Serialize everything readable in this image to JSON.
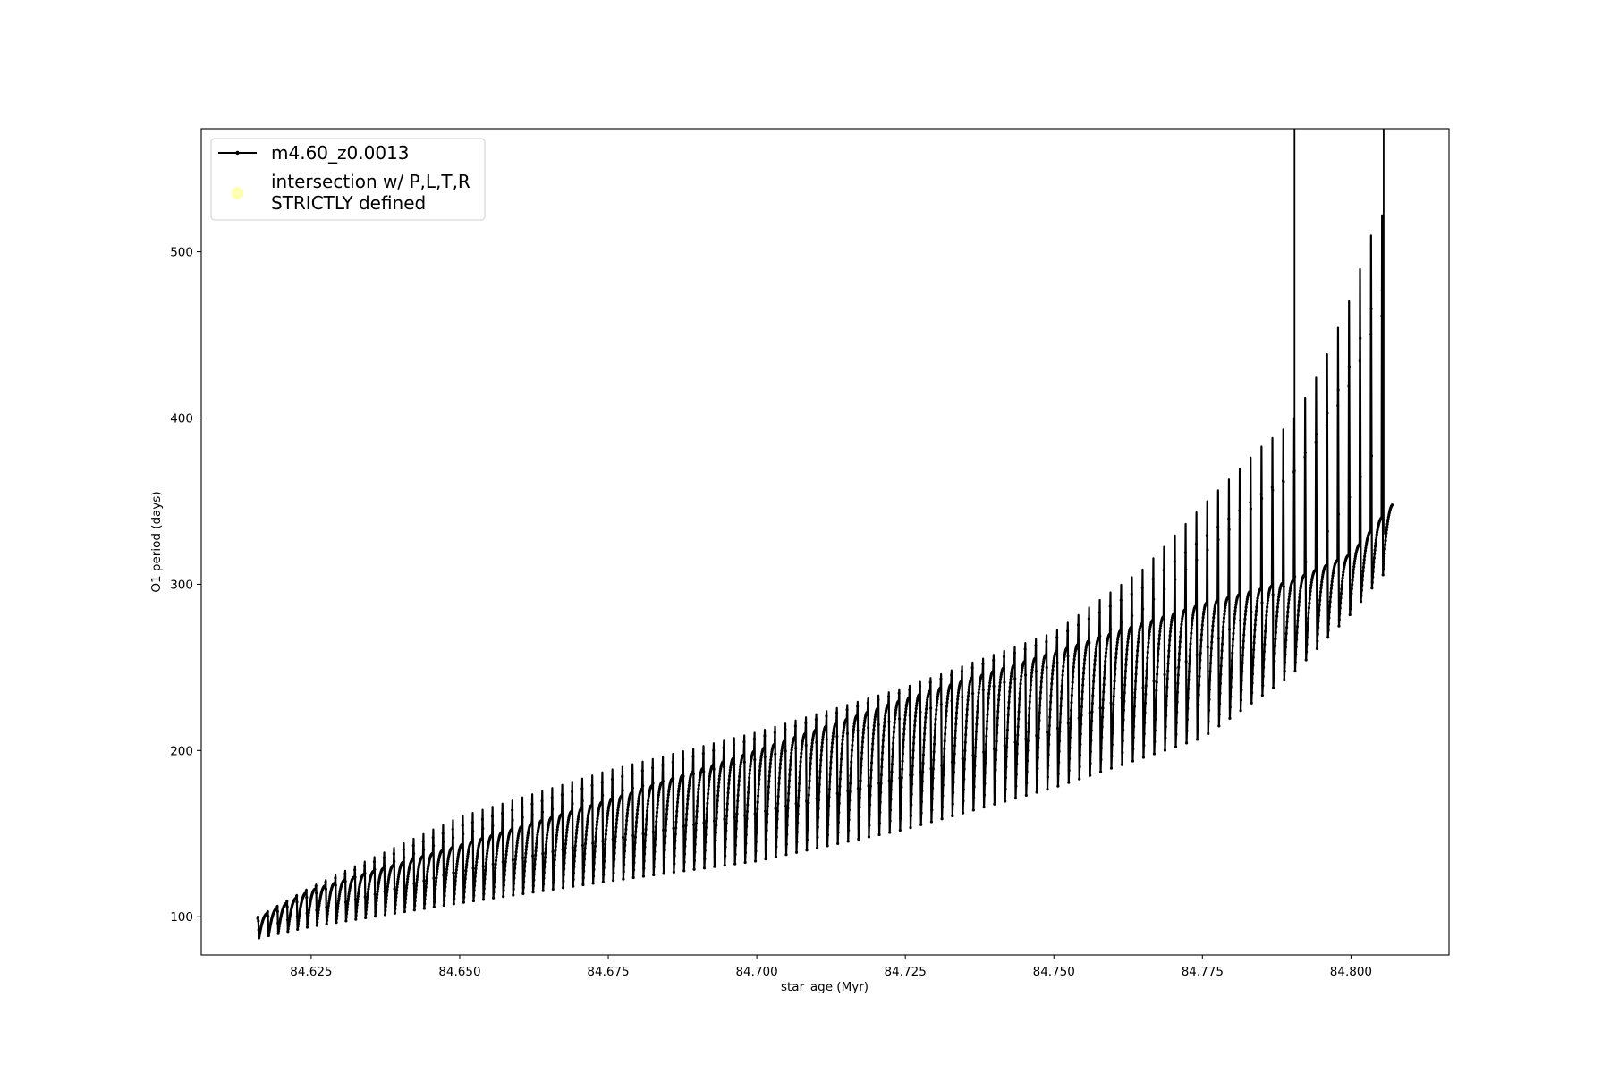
{
  "chart_data": {
    "type": "line",
    "xlabel": "star_age (Myr)",
    "ylabel": "O1 period (days)",
    "xlim": [
      84.6065,
      84.8165
    ],
    "ylim": [
      77,
      574
    ],
    "x_ticks": [
      84.625,
      84.65,
      84.675,
      84.7,
      84.725,
      84.75,
      84.775,
      84.8
    ],
    "x_tick_labels": [
      "84.625",
      "84.650",
      "84.675",
      "84.700",
      "84.725",
      "84.750",
      "84.775",
      "84.800"
    ],
    "y_ticks": [
      100,
      200,
      300,
      400,
      500
    ],
    "y_tick_labels": [
      "100",
      "200",
      "300",
      "400",
      "500"
    ],
    "grid": false,
    "legend_position": "upper-left",
    "series": [
      {
        "name": "m4.60_z0.0013",
        "color": "#000000",
        "style": "line-with-small-markers",
        "x_start": 84.616,
        "x_end": 84.807,
        "pulse_count": 110,
        "upper_envelope": [
          {
            "x": 84.616,
            "y": 99
          },
          {
            "x": 84.625,
            "y": 116
          },
          {
            "x": 84.65,
            "y": 143
          },
          {
            "x": 84.675,
            "y": 170
          },
          {
            "x": 84.7,
            "y": 200
          },
          {
            "x": 84.725,
            "y": 231
          },
          {
            "x": 84.75,
            "y": 259
          },
          {
            "x": 84.775,
            "y": 288
          },
          {
            "x": 84.79,
            "y": 302
          },
          {
            "x": 84.8,
            "y": 318
          },
          {
            "x": 84.807,
            "y": 348
          }
        ],
        "lower_envelope": [
          {
            "x": 84.616,
            "y": 87
          },
          {
            "x": 84.625,
            "y": 94
          },
          {
            "x": 84.65,
            "y": 108
          },
          {
            "x": 84.675,
            "y": 121
          },
          {
            "x": 84.7,
            "y": 133
          },
          {
            "x": 84.725,
            "y": 152
          },
          {
            "x": 84.75,
            "y": 177
          },
          {
            "x": 84.775,
            "y": 207
          },
          {
            "x": 84.79,
            "y": 245
          },
          {
            "x": 84.8,
            "y": 282
          },
          {
            "x": 84.806,
            "y": 308
          }
        ],
        "spike_peaks": [
          {
            "x": 84.616,
            "y": 100
          },
          {
            "x": 84.625,
            "y": 118
          },
          {
            "x": 84.65,
            "y": 160
          },
          {
            "x": 84.675,
            "y": 188
          },
          {
            "x": 84.7,
            "y": 211
          },
          {
            "x": 84.725,
            "y": 238
          },
          {
            "x": 84.75,
            "y": 271
          },
          {
            "x": 84.765,
            "y": 309
          },
          {
            "x": 84.775,
            "y": 347
          },
          {
            "x": 84.785,
            "y": 383
          },
          {
            "x": 84.79,
            "y": 397
          },
          {
            "x": 84.795,
            "y": 430
          },
          {
            "x": 84.8,
            "y": 473
          },
          {
            "x": 84.8045,
            "y": 522
          }
        ],
        "offscale_spikes": [
          {
            "x": 84.7905,
            "y_from": 300
          },
          {
            "x": 84.8055,
            "y_from": 330
          }
        ]
      },
      {
        "name": "intersection w/ P,L,T,R\nSTRICTLY defined",
        "color": "#ffffb0",
        "style": "scatter",
        "points": []
      }
    ]
  }
}
